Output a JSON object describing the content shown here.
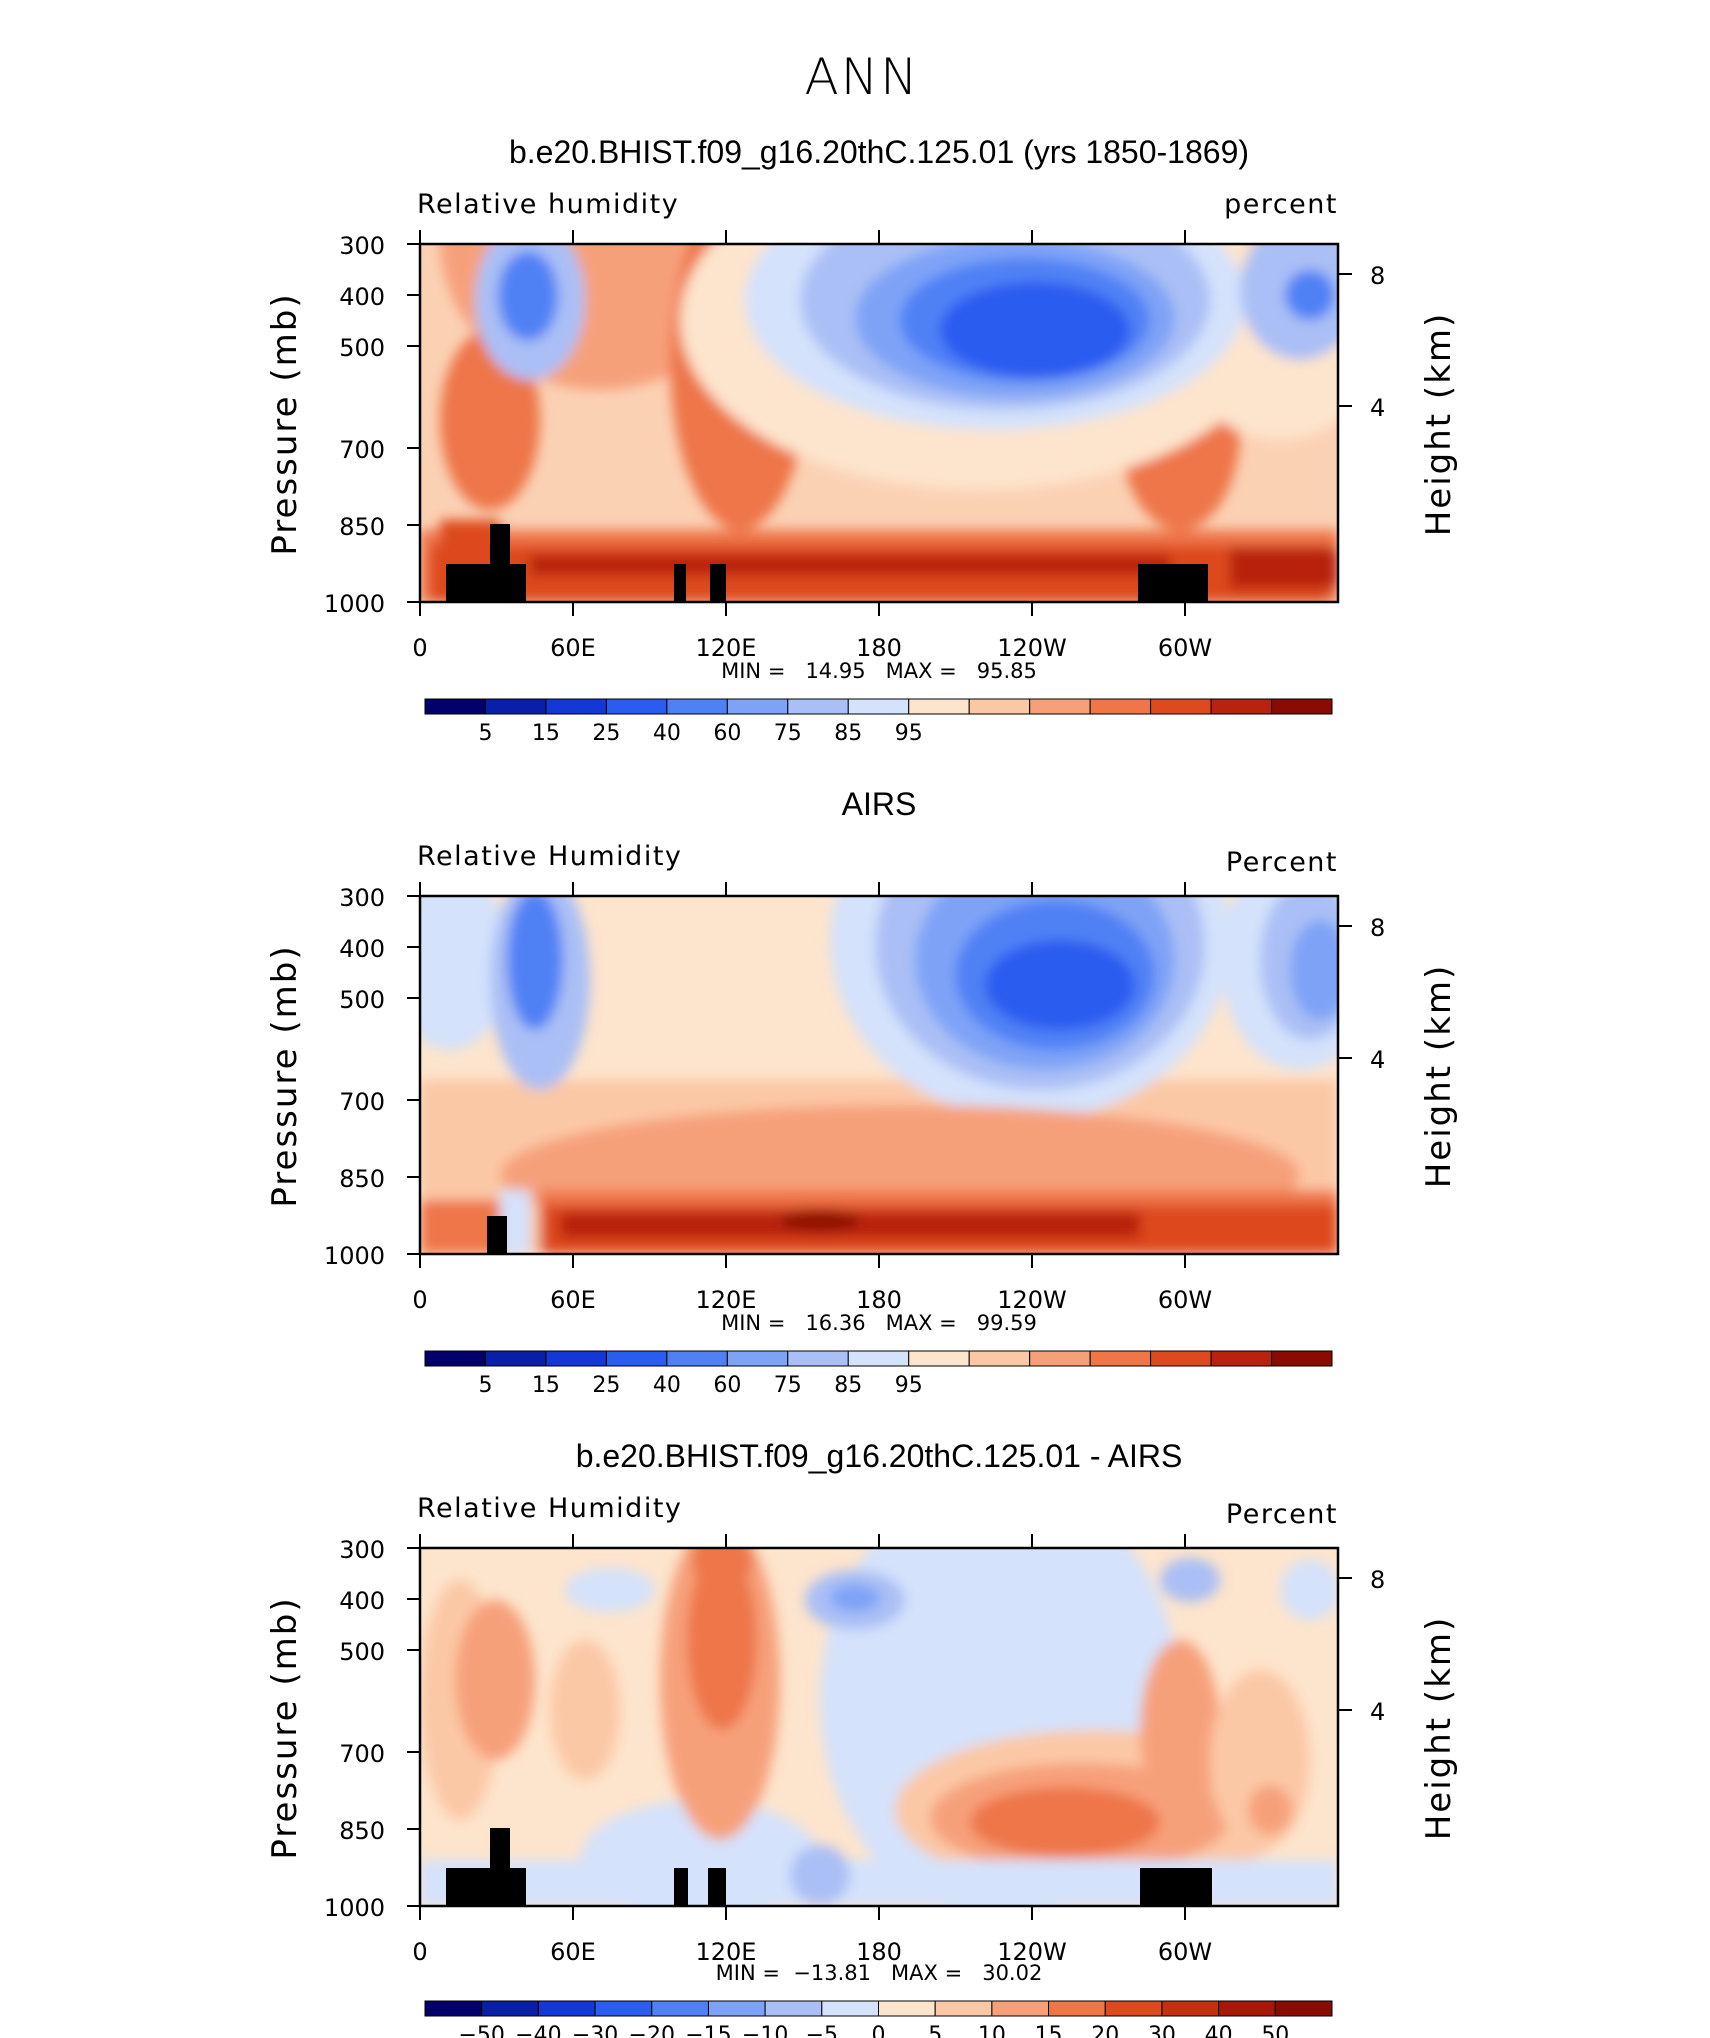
{
  "page_title": "ANN",
  "panels": [
    {
      "title": "b.e20.BHIST.f09_g16.20thC.125.01 (yrs 1850-1869)",
      "left_label": "Relative humidity",
      "right_label": "percent",
      "y_axis_label": "Pressure (mb)",
      "y2_axis_label": "Height (km)",
      "stats": "MIN =   14.95   MAX =   95.85",
      "colorbar_labels": [
        "5",
        "15",
        "25",
        "40",
        "60",
        "75",
        "85",
        "95"
      ]
    },
    {
      "title": "AIRS",
      "left_label": "Relative Humidity",
      "right_label": "Percent",
      "y_axis_label": "Pressure (mb)",
      "y2_axis_label": "Height (km)",
      "stats": "MIN =   16.36   MAX =   99.59",
      "colorbar_labels": [
        "5",
        "15",
        "25",
        "40",
        "60",
        "75",
        "85",
        "95"
      ]
    },
    {
      "title": "b.e20.BHIST.f09_g16.20thC.125.01 - AIRS",
      "left_label": "Relative Humidity",
      "right_label": "Percent",
      "y_axis_label": "Pressure (mb)",
      "y2_axis_label": "Height (km)",
      "stats": "MIN =  −13.81   MAX =   30.02",
      "colorbar_labels": [
        "−50",
        "−40",
        "−30",
        "−20",
        "−15",
        "−10",
        "−5",
        "0",
        "5",
        "10",
        "15",
        "20",
        "30",
        "40",
        "50"
      ]
    }
  ],
  "chart_data": [
    {
      "type": "heatmap",
      "title": "b.e20.BHIST.f09_g16.20thC.125.01 (yrs 1850-1869)",
      "variable": "Relative humidity",
      "units": "percent",
      "xlabel": "",
      "ylabel": "Pressure (mb)",
      "y2label": "Height (km)",
      "x_ticks": [
        "0",
        "60E",
        "120E",
        "180",
        "120W",
        "60W"
      ],
      "y_ticks": [
        "300",
        "400",
        "500",
        "700",
        "850",
        "1000"
      ],
      "y2_ticks": [
        "8",
        "4"
      ],
      "ylim": [
        1000,
        300
      ],
      "min": 14.95,
      "max": 95.85,
      "colorbar_levels": [
        5,
        15,
        25,
        40,
        60,
        75,
        85,
        95
      ]
    },
    {
      "type": "heatmap",
      "title": "AIRS",
      "variable": "Relative Humidity",
      "units": "Percent",
      "xlabel": "",
      "ylabel": "Pressure (mb)",
      "y2label": "Height (km)",
      "x_ticks": [
        "0",
        "60E",
        "120E",
        "180",
        "120W",
        "60W"
      ],
      "y_ticks": [
        "300",
        "400",
        "500",
        "700",
        "850",
        "1000"
      ],
      "y2_ticks": [
        "8",
        "4"
      ],
      "ylim": [
        1000,
        300
      ],
      "min": 16.36,
      "max": 99.59,
      "colorbar_levels": [
        5,
        15,
        25,
        40,
        60,
        75,
        85,
        95
      ]
    },
    {
      "type": "heatmap",
      "title": "b.e20.BHIST.f09_g16.20thC.125.01 - AIRS",
      "variable": "Relative Humidity",
      "units": "Percent",
      "xlabel": "",
      "ylabel": "Pressure (mb)",
      "y2label": "Height (km)",
      "x_ticks": [
        "0",
        "60E",
        "120E",
        "180",
        "120W",
        "60W"
      ],
      "y_ticks": [
        "300",
        "400",
        "500",
        "700",
        "850",
        "1000"
      ],
      "y2_ticks": [
        "8",
        "4"
      ],
      "ylim": [
        1000,
        300
      ],
      "min": -13.81,
      "max": 30.02,
      "colorbar_levels": [
        -50,
        -40,
        -30,
        -20,
        -15,
        -10,
        -5,
        0,
        5,
        10,
        15,
        20,
        30,
        40,
        50
      ]
    }
  ],
  "colorbar_colors": [
    "#04006b",
    "#0a1fa8",
    "#1338d6",
    "#2a5cf0",
    "#4f81f5",
    "#7ea3f6",
    "#aabff5",
    "#d4e2fb",
    "#fde4cc",
    "#fbc8a6",
    "#f6a07a",
    "#ee7648",
    "#dd4a1e",
    "#b8220e",
    "#8a0b03"
  ],
  "diff_colorbar_colors": [
    "#04006b",
    "#0a1fa8",
    "#1338d6",
    "#2a5cf0",
    "#4f81f5",
    "#7ea3f6",
    "#aabff5",
    "#d4e2fb",
    "#fde4cc",
    "#fbc8a6",
    "#f6a07a",
    "#ee7648",
    "#dd4a1e",
    "#c42f10",
    "#a8180a",
    "#8a0b03"
  ]
}
